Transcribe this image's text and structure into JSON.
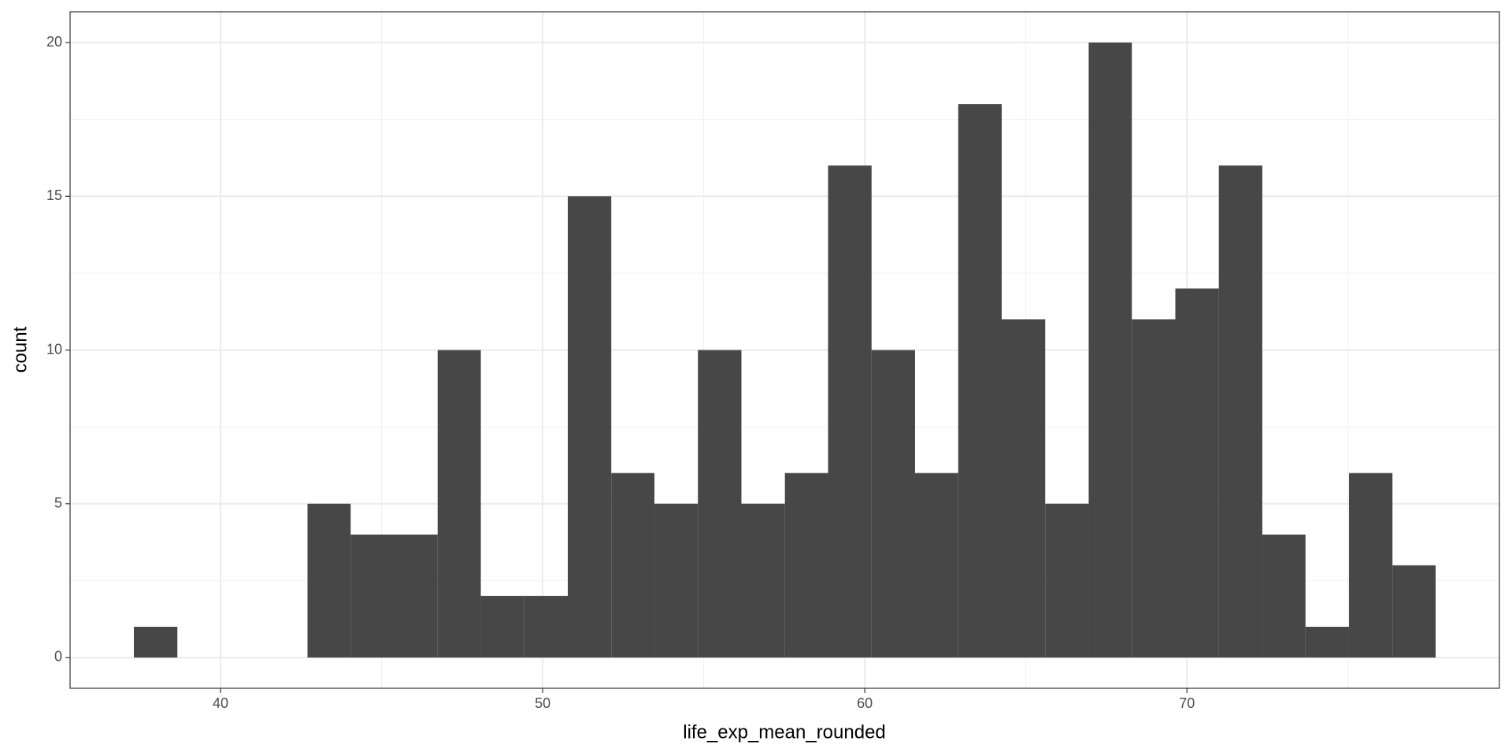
{
  "chart_data": {
    "type": "histogram",
    "x_label": "life_exp_mean_rounded",
    "y_label": "count",
    "bins": [
      37.31,
      38.66,
      40.0,
      41.35,
      42.7,
      44.04,
      45.39,
      46.74,
      48.08,
      49.43,
      50.78,
      52.13,
      53.47,
      54.82,
      56.17,
      57.52,
      58.86,
      60.21,
      61.56,
      62.9,
      64.25,
      65.6,
      66.95,
      68.29,
      69.64,
      70.99,
      72.34,
      73.68,
      75.03,
      76.38,
      77.72
    ],
    "values": [
      1,
      0,
      0,
      0,
      5,
      4,
      4,
      10,
      2,
      2,
      15,
      6,
      5,
      10,
      5,
      6,
      16,
      10,
      6,
      18,
      11,
      5,
      20,
      11,
      12,
      16,
      4,
      1,
      6,
      3
    ],
    "color": "#474747",
    "xlim": [
      35.33,
      79.7
    ],
    "xticks": [
      40,
      50,
      60,
      70
    ],
    "xminor": [
      45,
      55,
      65,
      75
    ],
    "ylim": [
      -1,
      21
    ],
    "yticks": [
      0,
      5,
      10,
      15,
      20
    ],
    "yminor": [
      2.5,
      7.5,
      12.5,
      17.5
    ],
    "grid": true
  }
}
